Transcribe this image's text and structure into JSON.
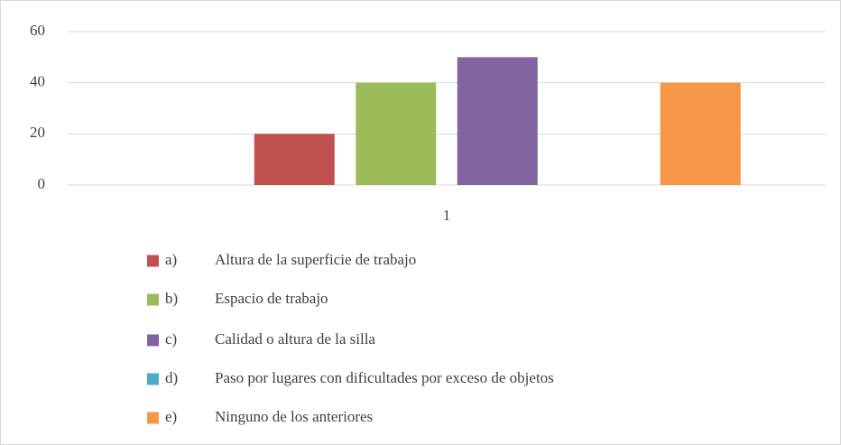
{
  "chart_data": {
    "type": "bar",
    "categories": [
      "1"
    ],
    "series": [
      {
        "name": "a) Altura de la superficie de trabajo",
        "color": "#c0504d",
        "values": [
          20
        ]
      },
      {
        "name": "b) Espacio de trabajo",
        "color": "#9bbb59",
        "values": [
          40
        ]
      },
      {
        "name": "c) Calidad o altura de la silla",
        "color": "#8064a2",
        "values": [
          50
        ]
      },
      {
        "name": "d) Paso por lugares con dificultades por exceso de objetos",
        "color": "#4bacc6",
        "values": [
          0
        ]
      },
      {
        "name": "e) Ninguno de los anteriores",
        "color": "#f79646",
        "values": [
          40
        ]
      }
    ],
    "ylim": [
      0,
      60
    ],
    "yticks": [
      0,
      20,
      40,
      60
    ],
    "grid": true,
    "legend": "bottom"
  }
}
